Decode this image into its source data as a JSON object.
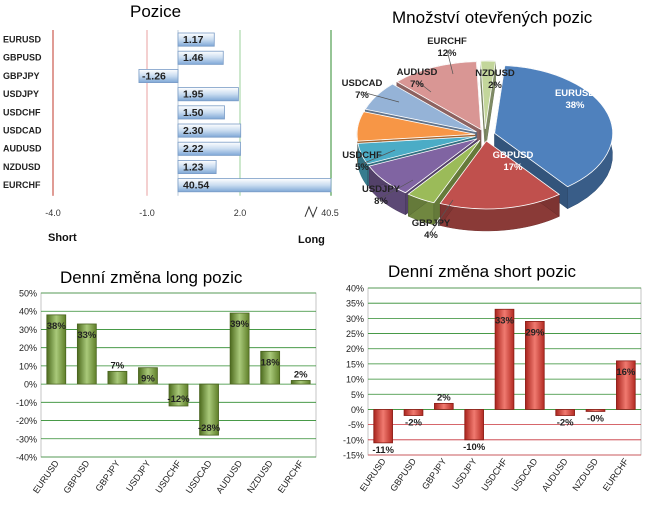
{
  "chart_data": [
    {
      "type": "bar",
      "title": "Pozice",
      "orientation": "horizontal",
      "categories": [
        "EURUSD",
        "GBPUSD",
        "GBPJPY",
        "USDJPY",
        "USDCHF",
        "USDCAD",
        "AUDUSD",
        "NZDUSD",
        "EURCHF"
      ],
      "values": [
        1.17,
        1.46,
        -1.26,
        1.95,
        1.5,
        2.3,
        2.22,
        1.23,
        40.54
      ],
      "value_labels": [
        "1.17",
        "1.46",
        "-1.26",
        "1.95",
        "1.50",
        "2.30",
        "2.22",
        "1.23",
        "40.54"
      ],
      "axis_ticks": [
        "-4.0",
        "-1.0",
        "2.0",
        "40.5"
      ],
      "axis_break": true,
      "xlim": [
        -4.0,
        40.5
      ],
      "left_label": "Short",
      "right_label": "Long",
      "bar_color": "#8fb4dd"
    },
    {
      "type": "pie",
      "title": "Množství otevřených pozic",
      "categories": [
        "EURUSD",
        "GBPUSD",
        "GBPJPY",
        "USDJPY",
        "USDCHF",
        "USDCAD",
        "AUDUSD",
        "EURCHF",
        "NZDUSD"
      ],
      "values": [
        38,
        17,
        4,
        8,
        5,
        7,
        7,
        12,
        2
      ],
      "value_labels": [
        "38%",
        "17%",
        "4%",
        "8%",
        "5%",
        "7%",
        "7%",
        "12%",
        "2%"
      ],
      "colors": [
        "#4f81bd",
        "#c0504d",
        "#9bbb59",
        "#8064a2",
        "#4bacc6",
        "#f79646",
        "#95b3d7",
        "#d99694",
        "#c3d69b"
      ],
      "style": "3d-exploded"
    },
    {
      "type": "bar",
      "title": "Denní změna long pozic",
      "categories": [
        "EURUSD",
        "GBPUSD",
        "GBPJPY",
        "USDJPY",
        "USDCHF",
        "USDCAD",
        "AUDUSD",
        "NZDUSD",
        "EURCHF"
      ],
      "values": [
        38,
        33,
        7,
        9,
        -12,
        -28,
        39,
        18,
        2
      ],
      "value_labels": [
        "38%",
        "33%",
        "7%",
        "9%",
        "-12%",
        "-28%",
        "39%",
        "18%",
        "2%"
      ],
      "ylim": [
        -40,
        50
      ],
      "yticks": [
        "50%",
        "40%",
        "30%",
        "20%",
        "10%",
        "0%",
        "-10%",
        "-20%",
        "-30%",
        "-40%"
      ],
      "bar_color": "#7a9a3a",
      "grid_color": "#2e8b2e"
    },
    {
      "type": "bar",
      "title": "Denní změna short pozic",
      "categories": [
        "EURUSD",
        "GBPUSD",
        "GBPJPY",
        "USDJPY",
        "USDCHF",
        "USDCAD",
        "AUDUSD",
        "NZDUSD",
        "EURCHF"
      ],
      "values": [
        -11,
        -2,
        2,
        -10,
        33,
        29,
        -2,
        -0.5,
        16
      ],
      "value_labels": [
        "-11%",
        "-2%",
        "2%",
        "-10%",
        "33%",
        "29%",
        "-2%",
        "-0%",
        "16%"
      ],
      "ylim": [
        -15,
        40
      ],
      "yticks": [
        "40%",
        "35%",
        "30%",
        "25%",
        "20%",
        "15%",
        "10%",
        "5%",
        "0%",
        "-5%",
        "-10%",
        "-15%"
      ],
      "bar_color": "#d23a32",
      "grid_color": "#2e8b2e",
      "grid_neg_color": "#c8333a"
    }
  ]
}
